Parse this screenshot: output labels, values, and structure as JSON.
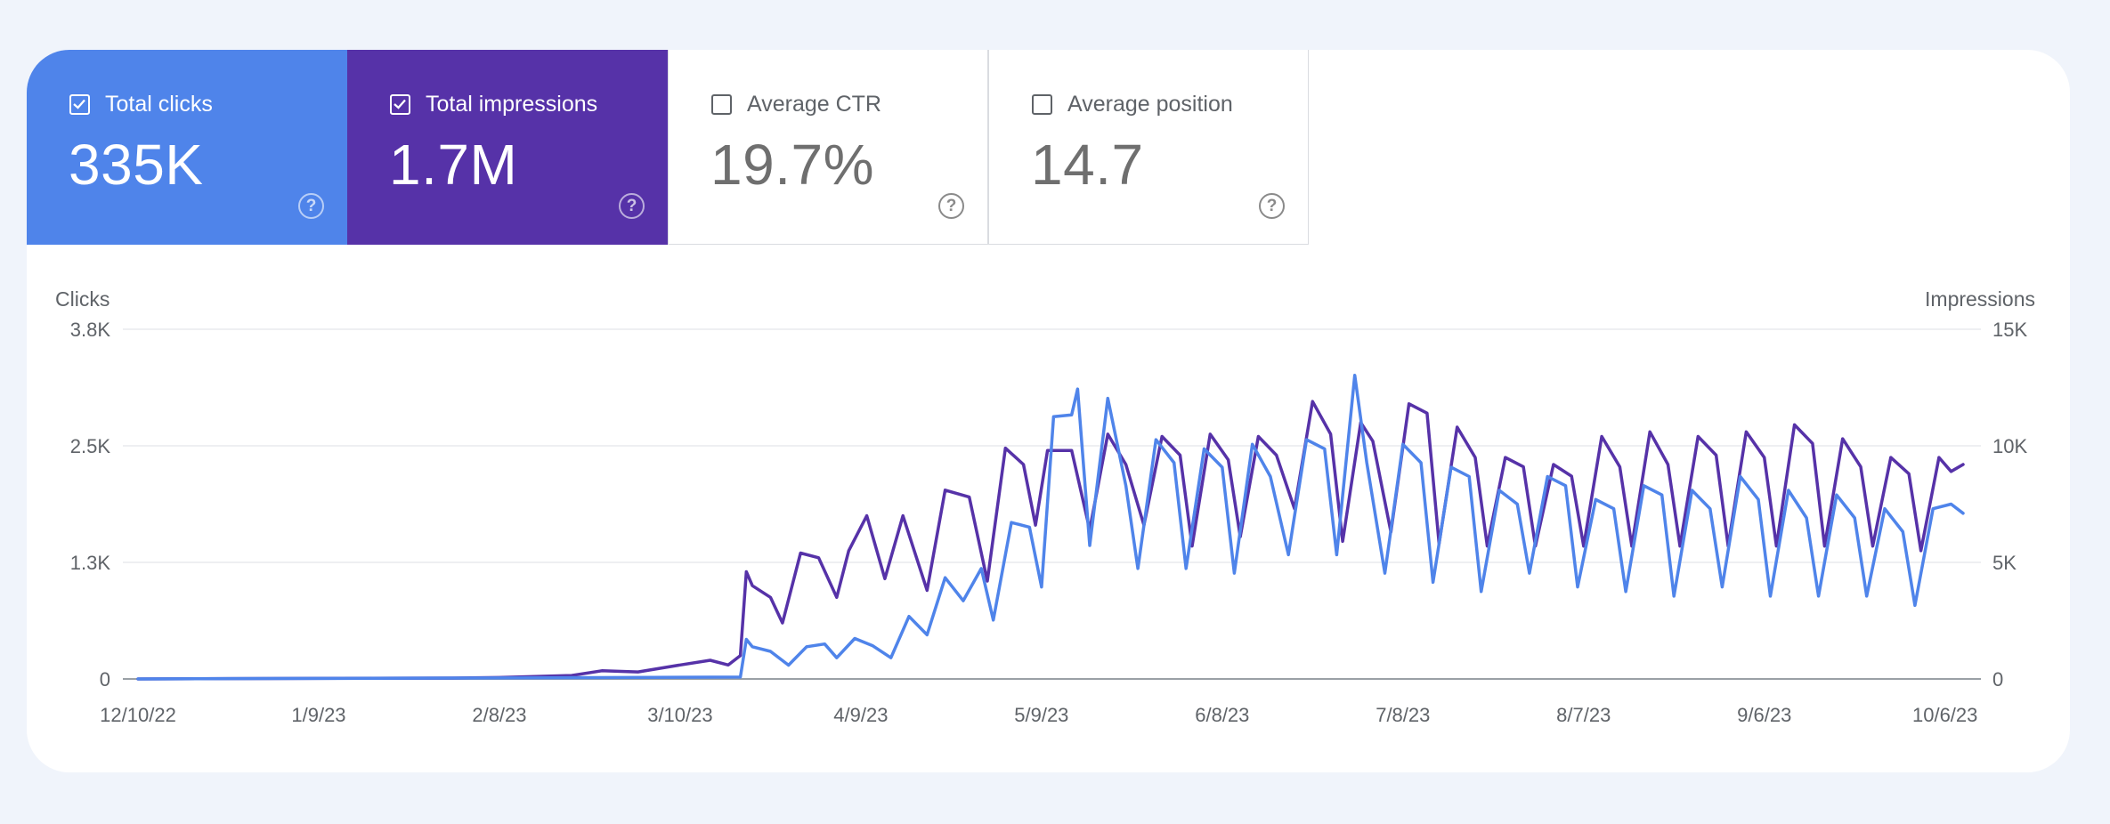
{
  "metrics": [
    {
      "label": "Total clicks",
      "value": "335K",
      "checked": true,
      "color": "#4f84ea"
    },
    {
      "label": "Total impressions",
      "value": "1.7M",
      "checked": true,
      "color": "#5632a8"
    },
    {
      "label": "Average CTR",
      "value": "19.7%",
      "checked": false
    },
    {
      "label": "Average position",
      "value": "14.7",
      "checked": false
    }
  ],
  "help_glyph": "?",
  "chart_data": {
    "type": "line",
    "y_left_label": "Clicks",
    "y_right_label": "Impressions",
    "y_left_ticks": [
      "0",
      "1.3K",
      "2.5K",
      "3.8K"
    ],
    "y_right_ticks": [
      "0",
      "5K",
      "10K",
      "15K"
    ],
    "y_left_range": [
      0,
      3800
    ],
    "y_right_range": [
      0,
      15000
    ],
    "x_ticks": [
      "12/10/22",
      "1/9/23",
      "2/8/23",
      "3/10/23",
      "4/9/23",
      "5/9/23",
      "6/8/23",
      "7/8/23",
      "8/7/23",
      "9/6/23",
      "10/6/23"
    ],
    "x_range": [
      "12/10/22",
      "10/9/23"
    ],
    "grid": true,
    "series": [
      {
        "name": "Total impressions",
        "axis": "right",
        "color": "#5632a8",
        "points": [
          [
            "12/10/22",
            0
          ],
          [
            "1/1/23",
            20
          ],
          [
            "1/31/23",
            40
          ],
          [
            "2/8/23",
            60
          ],
          [
            "2/20/23",
            150
          ],
          [
            "2/25/23",
            350
          ],
          [
            "3/3/23",
            300
          ],
          [
            "3/10/23",
            600
          ],
          [
            "3/15/23",
            800
          ],
          [
            "3/18/23",
            600
          ],
          [
            "3/20/23",
            1000
          ],
          [
            "3/21/23",
            4600
          ],
          [
            "3/22/23",
            4000
          ],
          [
            "3/25/23",
            3500
          ],
          [
            "3/27/23",
            2400
          ],
          [
            "3/30/23",
            5400
          ],
          [
            "4/2/23",
            5200
          ],
          [
            "4/5/23",
            3500
          ],
          [
            "4/7/23",
            5500
          ],
          [
            "4/10/23",
            7000
          ],
          [
            "4/13/23",
            4300
          ],
          [
            "4/16/23",
            7000
          ],
          [
            "4/20/23",
            3800
          ],
          [
            "4/23/23",
            8100
          ],
          [
            "4/27/23",
            7800
          ],
          [
            "4/30/23",
            4200
          ],
          [
            "5/3/23",
            9900
          ],
          [
            "5/6/23",
            9200
          ],
          [
            "5/8/23",
            6600
          ],
          [
            "5/10/23",
            9800
          ],
          [
            "5/14/23",
            9800
          ],
          [
            "5/17/23",
            6400
          ],
          [
            "5/20/23",
            10500
          ],
          [
            "5/23/23",
            9200
          ],
          [
            "5/26/23",
            6600
          ],
          [
            "5/29/23",
            10400
          ],
          [
            "6/1/23",
            9600
          ],
          [
            "6/3/23",
            5700
          ],
          [
            "6/6/23",
            10500
          ],
          [
            "6/9/23",
            9400
          ],
          [
            "6/11/23",
            6100
          ],
          [
            "6/14/23",
            10400
          ],
          [
            "6/17/23",
            9600
          ],
          [
            "6/20/23",
            7300
          ],
          [
            "6/23/23",
            11900
          ],
          [
            "6/26/23",
            10500
          ],
          [
            "6/28/23",
            5900
          ],
          [
            "7/1/23",
            11000
          ],
          [
            "7/3/23",
            10200
          ],
          [
            "7/6/23",
            6300
          ],
          [
            "7/9/23",
            11800
          ],
          [
            "7/12/23",
            11400
          ],
          [
            "7/14/23",
            5800
          ],
          [
            "7/17/23",
            10800
          ],
          [
            "7/20/23",
            9500
          ],
          [
            "7/22/23",
            5700
          ],
          [
            "7/25/23",
            9500
          ],
          [
            "7/28/23",
            9100
          ],
          [
            "7/30/23",
            5700
          ],
          [
            "8/2/23",
            9200
          ],
          [
            "8/5/23",
            8700
          ],
          [
            "8/7/23",
            5700
          ],
          [
            "8/10/23",
            10400
          ],
          [
            "8/13/23",
            9100
          ],
          [
            "8/15/23",
            5700
          ],
          [
            "8/18/23",
            10600
          ],
          [
            "8/21/23",
            9200
          ],
          [
            "8/23/23",
            5700
          ],
          [
            "8/26/23",
            10400
          ],
          [
            "8/29/23",
            9600
          ],
          [
            "8/31/23",
            5700
          ],
          [
            "9/3/23",
            10600
          ],
          [
            "9/6/23",
            9500
          ],
          [
            "9/8/23",
            5700
          ],
          [
            "9/11/23",
            10900
          ],
          [
            "9/14/23",
            10100
          ],
          [
            "9/16/23",
            5700
          ],
          [
            "9/19/23",
            10300
          ],
          [
            "9/22/23",
            9100
          ],
          [
            "9/24/23",
            5700
          ],
          [
            "9/27/23",
            9500
          ],
          [
            "9/30/23",
            8800
          ],
          [
            "10/2/23",
            5500
          ],
          [
            "10/5/23",
            9500
          ],
          [
            "10/7/23",
            8900
          ],
          [
            "10/9/23",
            9200
          ]
        ]
      },
      {
        "name": "Total clicks",
        "axis": "left",
        "color": "#4f84ea",
        "points": [
          [
            "12/10/22",
            0
          ],
          [
            "1/1/23",
            5
          ],
          [
            "2/1/23",
            10
          ],
          [
            "3/1/23",
            15
          ],
          [
            "3/20/23",
            20
          ],
          [
            "3/21/23",
            430
          ],
          [
            "3/22/23",
            350
          ],
          [
            "3/25/23",
            300
          ],
          [
            "3/28/23",
            150
          ],
          [
            "3/31/23",
            350
          ],
          [
            "4/3/23",
            380
          ],
          [
            "4/5/23",
            230
          ],
          [
            "4/8/23",
            440
          ],
          [
            "4/11/23",
            360
          ],
          [
            "4/14/23",
            230
          ],
          [
            "4/17/23",
            680
          ],
          [
            "4/20/23",
            480
          ],
          [
            "4/23/23",
            1100
          ],
          [
            "4/26/23",
            850
          ],
          [
            "4/29/23",
            1200
          ],
          [
            "5/1/23",
            640
          ],
          [
            "5/4/23",
            1700
          ],
          [
            "5/7/23",
            1650
          ],
          [
            "5/9/23",
            1000
          ],
          [
            "5/11/23",
            2850
          ],
          [
            "5/14/23",
            2870
          ],
          [
            "5/15/23",
            3150
          ],
          [
            "5/17/23",
            1450
          ],
          [
            "5/20/23",
            3050
          ],
          [
            "5/23/23",
            2100
          ],
          [
            "5/25/23",
            1200
          ],
          [
            "5/28/23",
            2600
          ],
          [
            "5/31/23",
            2350
          ],
          [
            "6/2/23",
            1200
          ],
          [
            "6/5/23",
            2500
          ],
          [
            "6/8/23",
            2300
          ],
          [
            "6/10/23",
            1150
          ],
          [
            "6/13/23",
            2550
          ],
          [
            "6/16/23",
            2200
          ],
          [
            "6/19/23",
            1350
          ],
          [
            "6/22/23",
            2600
          ],
          [
            "6/25/23",
            2500
          ],
          [
            "6/27/23",
            1350
          ],
          [
            "6/30/23",
            3300
          ],
          [
            "7/2/23",
            2350
          ],
          [
            "7/5/23",
            1150
          ],
          [
            "7/8/23",
            2550
          ],
          [
            "7/11/23",
            2350
          ],
          [
            "7/13/23",
            1050
          ],
          [
            "7/16/23",
            2300
          ],
          [
            "7/19/23",
            2200
          ],
          [
            "7/21/23",
            950
          ],
          [
            "7/24/23",
            2050
          ],
          [
            "7/27/23",
            1900
          ],
          [
            "7/29/23",
            1150
          ],
          [
            "8/1/23",
            2200
          ],
          [
            "8/4/23",
            2100
          ],
          [
            "8/6/23",
            1000
          ],
          [
            "8/9/23",
            1950
          ],
          [
            "8/12/23",
            1850
          ],
          [
            "8/14/23",
            950
          ],
          [
            "8/17/23",
            2100
          ],
          [
            "8/20/23",
            2000
          ],
          [
            "8/22/23",
            900
          ],
          [
            "8/25/23",
            2050
          ],
          [
            "8/28/23",
            1850
          ],
          [
            "8/30/23",
            1000
          ],
          [
            "9/2/23",
            2200
          ],
          [
            "9/5/23",
            1950
          ],
          [
            "9/7/23",
            900
          ],
          [
            "9/10/23",
            2050
          ],
          [
            "9/13/23",
            1750
          ],
          [
            "9/15/23",
            900
          ],
          [
            "9/18/23",
            2000
          ],
          [
            "9/21/23",
            1750
          ],
          [
            "9/23/23",
            900
          ],
          [
            "9/26/23",
            1850
          ],
          [
            "9/29/23",
            1600
          ],
          [
            "10/1/23",
            800
          ],
          [
            "10/4/23",
            1850
          ],
          [
            "10/7/23",
            1900
          ],
          [
            "10/9/23",
            1800
          ]
        ]
      }
    ]
  }
}
